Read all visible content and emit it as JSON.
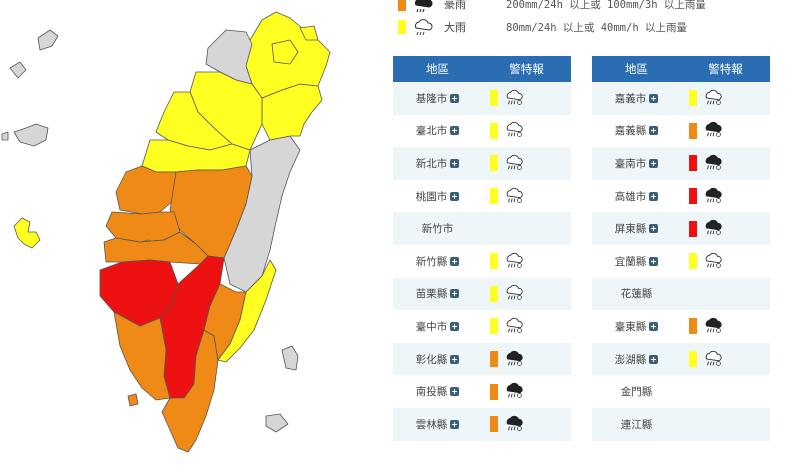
{
  "colors": {
    "red": "#ee1111",
    "orange": "#f08a17",
    "yellow": "#ffff22",
    "gray": "#d6d6d6",
    "header": "#2a6db3"
  },
  "legend": [
    {
      "level": "orange",
      "icon": "heavy-rain-icon",
      "label": "豪雨",
      "desc": "200mm/24h 以上或 100mm/3h 以上雨量"
    },
    {
      "level": "yellow",
      "icon": "rain-icon",
      "label": "大雨",
      "desc": "80mm/24h 以上或 40mm/h 以上雨量"
    }
  ],
  "table_headers": {
    "region": "地區",
    "warning": "警特報"
  },
  "left_table": [
    {
      "name": "基隆市",
      "level": "yellow"
    },
    {
      "name": "臺北市",
      "level": "yellow"
    },
    {
      "name": "新北市",
      "level": "yellow"
    },
    {
      "name": "桃園市",
      "level": "yellow"
    },
    {
      "name": "新竹市",
      "level": "none"
    },
    {
      "name": "新竹縣",
      "level": "yellow"
    },
    {
      "name": "苗栗縣",
      "level": "yellow"
    },
    {
      "name": "臺中市",
      "level": "yellow"
    },
    {
      "name": "彰化縣",
      "level": "orange"
    },
    {
      "name": "南投縣",
      "level": "orange"
    },
    {
      "name": "雲林縣",
      "level": "orange"
    }
  ],
  "right_table": [
    {
      "name": "嘉義市",
      "level": "yellow"
    },
    {
      "name": "嘉義縣",
      "level": "orange"
    },
    {
      "name": "臺南市",
      "level": "red"
    },
    {
      "name": "高雄市",
      "level": "red"
    },
    {
      "name": "屏東縣",
      "level": "red"
    },
    {
      "name": "宜蘭縣",
      "level": "yellow"
    },
    {
      "name": "花蓮縣",
      "level": "none"
    },
    {
      "name": "臺東縣",
      "level": "orange"
    },
    {
      "name": "澎湖縣",
      "level": "yellow"
    },
    {
      "name": "金門縣",
      "level": "none"
    },
    {
      "name": "連江縣",
      "level": "none"
    }
  ]
}
